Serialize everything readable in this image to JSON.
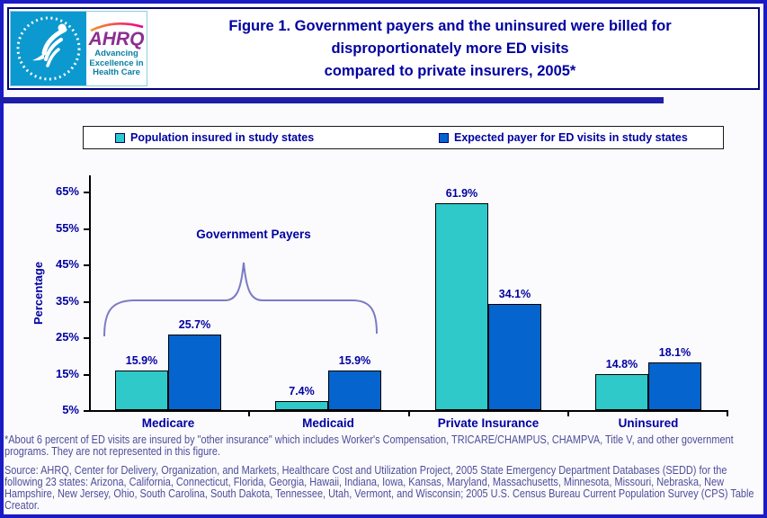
{
  "header": {
    "logo": {
      "ahrq_acronym": "AHRQ",
      "tagline_lines": [
        "Advancing",
        "Excellence in",
        "Health Care"
      ]
    },
    "title_lines": [
      "Figure 1. Government payers and the uninsured were billed for",
      "disproportionately more ED visits",
      "compared to private insurers, 2005*"
    ]
  },
  "legend": {
    "items": [
      {
        "label": "Population insured in study states",
        "color": "#2fc9c9"
      },
      {
        "label": "Expected payer for ED visits in study states",
        "color": "#0564cd"
      }
    ]
  },
  "chart_data": {
    "type": "bar",
    "title": "Figure 1. Government payers and the uninsured were billed for disproportionately more ED visits compared to private insurers, 2005*",
    "categories": [
      "Medicare",
      "Medicaid",
      "Private Insurance",
      "Uninsured"
    ],
    "series": [
      {
        "name": "Population insured in study states",
        "color": "#2fc9c9",
        "values": [
          15.9,
          7.4,
          61.9,
          14.8
        ]
      },
      {
        "name": "Expected payer for ED visits in study states",
        "color": "#0564cd",
        "values": [
          25.7,
          15.9,
          34.1,
          18.1
        ]
      }
    ],
    "value_suffix": "%",
    "xlabel": "",
    "ylabel": "Percentage",
    "y_axis_ticks": [
      "65%",
      "55%",
      "45%",
      "35%",
      "25%",
      "15%",
      "5%"
    ],
    "y_min": 5,
    "y_max": 70,
    "grid": false,
    "legend_position": "top",
    "annotation": "Government Payers",
    "annotation_targets": [
      "Medicare",
      "Medicaid"
    ]
  },
  "footnote": "*About 6 percent of ED visits are insured by \"other insurance\" which includes Worker's Compensation, TRICARE/CHAMPUS, CHAMPVA, Title V, and other government programs. They are not represented in this figure.",
  "source": "Source: AHRQ, Center for Delivery, Organization, and Markets, Healthcare Cost and Utilization Project, 2005 State Emergency Department Databases (SEDD) for the following 23 states: Arizona, California, Connecticut, Florida, Georgia, Hawaii, Indiana, Iowa, Kansas, Maryland, Massachusetts, Minnesota, Missouri, Nebraska, New Hampshire, New Jersey, Ohio, South Carolina, South Dakota, Tennessee, Utah, Vermont, and Wisconsin; 2005 U.S. Census Bureau Current Population Survey (CPS) Table Creator."
}
